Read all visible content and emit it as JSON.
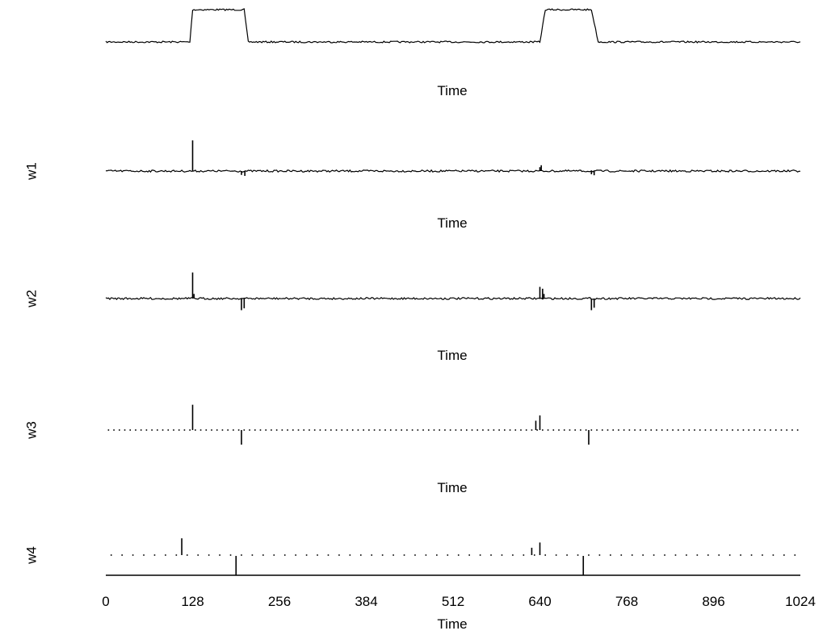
{
  "chart_data": {
    "type": "line",
    "x_axis": {
      "label": "Time",
      "range": [
        0,
        1024
      ],
      "ticks": [
        0,
        128,
        256,
        384,
        512,
        640,
        768,
        896,
        1024
      ]
    },
    "panels": [
      {
        "label": "",
        "xlabel": "Time",
        "kind": "line",
        "baseline": 0,
        "ylim": [
          -0.2,
          1.2
        ],
        "segments": [
          {
            "x": [
              0,
              124,
              128,
              204,
              210,
              1024
            ],
            "y": [
              0,
              0,
              1,
              1,
              0,
              0
            ]
          },
          {
            "x": [
              0,
              640,
              648,
              716,
              726,
              1024
            ],
            "y": [
              0,
              0,
              1,
              1,
              0,
              0
            ]
          }
        ],
        "spikes": []
      },
      {
        "label": "w1",
        "xlabel": "Time",
        "kind": "line",
        "baseline": 0,
        "ylim": [
          -1,
          1
        ],
        "segments": [],
        "spikes": [
          {
            "x": 128,
            "y": 0.95
          },
          {
            "x": 200,
            "y": -0.12
          },
          {
            "x": 205,
            "y": -0.15
          },
          {
            "x": 640,
            "y": 0.12
          },
          {
            "x": 642,
            "y": 0.18
          },
          {
            "x": 716,
            "y": -0.1
          },
          {
            "x": 720,
            "y": -0.13
          }
        ]
      },
      {
        "label": "w2",
        "xlabel": "Time",
        "kind": "line",
        "baseline": 0,
        "ylim": [
          -1,
          1
        ],
        "segments": [],
        "spikes": [
          {
            "x": 128,
            "y": 0.85
          },
          {
            "x": 130,
            "y": 0.15
          },
          {
            "x": 200,
            "y": -0.38
          },
          {
            "x": 204,
            "y": -0.32
          },
          {
            "x": 640,
            "y": 0.38
          },
          {
            "x": 644,
            "y": 0.32
          },
          {
            "x": 646,
            "y": 0.15
          },
          {
            "x": 716,
            "y": -0.38
          },
          {
            "x": 720,
            "y": -0.3
          }
        ]
      },
      {
        "label": "w3",
        "xlabel": "Time",
        "kind": "dots",
        "dot_count": 128,
        "baseline": 0,
        "ylim": [
          -1,
          1
        ],
        "segments": [],
        "spikes": [
          {
            "x": 128,
            "y": 0.95
          },
          {
            "x": 200,
            "y": -0.55
          },
          {
            "x": 634,
            "y": 0.35
          },
          {
            "x": 640,
            "y": 0.55
          },
          {
            "x": 712,
            "y": -0.55
          }
        ]
      },
      {
        "label": "w4",
        "xlabel": "Time",
        "kind": "dots",
        "dot_count": 64,
        "baseline": 0,
        "ylim": [
          -1,
          1
        ],
        "segments": [],
        "spikes": [
          {
            "x": 112,
            "y": 0.8
          },
          {
            "x": 628,
            "y": 0.35
          },
          {
            "x": 640,
            "y": 0.6
          }
        ],
        "level_series": {
          "baseline": 0,
          "spikes": [
            {
              "x": 192,
              "y": 0.8
            },
            {
              "x": 704,
              "y": 0.8
            }
          ]
        }
      }
    ]
  }
}
